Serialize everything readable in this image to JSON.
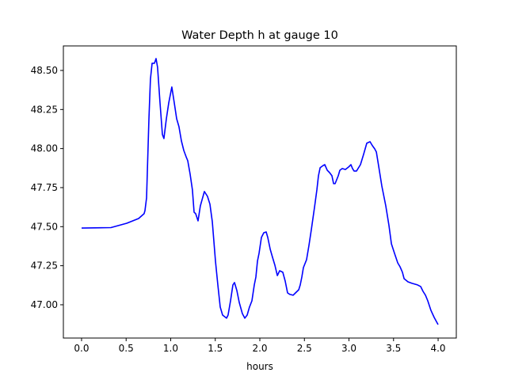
{
  "chart_data": {
    "type": "line",
    "title": "Water Depth h at gauge 10",
    "xlabel": "hours",
    "ylabel": "",
    "xlim": [
      -0.204,
      4.204
    ],
    "ylim": [
      46.787,
      48.657
    ],
    "xticks": [
      0.0,
      0.5,
      1.0,
      1.5,
      2.0,
      2.5,
      3.0,
      3.5,
      4.0
    ],
    "xtick_labels": [
      "0.0",
      "0.5",
      "1.0",
      "1.5",
      "2.0",
      "2.5",
      "3.0",
      "3.5",
      "4.0"
    ],
    "yticks": [
      47.0,
      47.25,
      47.5,
      47.75,
      48.0,
      48.25,
      48.5
    ],
    "ytick_labels": [
      "47.00",
      "47.25",
      "47.50",
      "47.75",
      "48.00",
      "48.25",
      "48.50"
    ],
    "grid": false,
    "series": [
      {
        "name": "h",
        "color": "#0000ff",
        "x": [
          0,
          0.329,
          0.507,
          0.64,
          0.702,
          0.711,
          0.729,
          0.756,
          0.773,
          0.791,
          0.818,
          0.836,
          0.853,
          0.88,
          0.907,
          0.924,
          0.951,
          0.978,
          1.013,
          1.04,
          1.067,
          1.093,
          1.12,
          1.147,
          1.173,
          1.191,
          1.218,
          1.244,
          1.262,
          1.28,
          1.307,
          1.333,
          1.378,
          1.413,
          1.44,
          1.467,
          1.502,
          1.529,
          1.556,
          1.582,
          1.627,
          1.644,
          1.671,
          1.698,
          1.716,
          1.742,
          1.769,
          1.804,
          1.831,
          1.858,
          1.884,
          1.911,
          1.938,
          1.956,
          1.973,
          1.991,
          2.018,
          2.044,
          2.071,
          2.089,
          2.116,
          2.142,
          2.169,
          2.196,
          2.222,
          2.258,
          2.284,
          2.311,
          2.338,
          2.373,
          2.4,
          2.436,
          2.453,
          2.471,
          2.489,
          2.524,
          2.551,
          2.578,
          2.613,
          2.64,
          2.658,
          2.676,
          2.711,
          2.729,
          2.756,
          2.782,
          2.809,
          2.827,
          2.844,
          2.88,
          2.898,
          2.924,
          2.96,
          2.996,
          3.022,
          3.04,
          3.058,
          3.084,
          3.129,
          3.164,
          3.2,
          3.236,
          3.262,
          3.289,
          3.307,
          3.333,
          3.369,
          3.413,
          3.449,
          3.476,
          3.511,
          3.547,
          3.573,
          3.6,
          3.618,
          3.662,
          3.707,
          3.769,
          3.804,
          3.831,
          3.858,
          3.884,
          3.92,
          3.956,
          4.0
        ],
        "y": [
          47.491,
          47.494,
          47.522,
          47.552,
          47.583,
          47.603,
          47.684,
          48.191,
          48.444,
          48.546,
          48.546,
          48.576,
          48.52,
          48.292,
          48.09,
          48.064,
          48.191,
          48.292,
          48.394,
          48.292,
          48.191,
          48.14,
          48.049,
          47.988,
          47.948,
          47.922,
          47.836,
          47.735,
          47.593,
          47.583,
          47.537,
          47.633,
          47.725,
          47.694,
          47.644,
          47.532,
          47.279,
          47.127,
          46.985,
          46.934,
          46.914,
          46.934,
          47.025,
          47.127,
          47.142,
          47.091,
          47.015,
          46.944,
          46.914,
          46.934,
          46.985,
          47.025,
          47.127,
          47.177,
          47.279,
          47.329,
          47.431,
          47.461,
          47.466,
          47.431,
          47.355,
          47.304,
          47.253,
          47.187,
          47.218,
          47.208,
          47.152,
          47.076,
          47.066,
          47.061,
          47.076,
          47.096,
          47.127,
          47.177,
          47.238,
          47.289,
          47.38,
          47.481,
          47.623,
          47.735,
          47.826,
          47.877,
          47.892,
          47.897,
          47.861,
          47.846,
          47.826,
          47.775,
          47.775,
          47.826,
          47.861,
          47.872,
          47.866,
          47.882,
          47.897,
          47.872,
          47.856,
          47.856,
          47.897,
          47.963,
          48.034,
          48.044,
          48.019,
          47.998,
          47.978,
          47.887,
          47.76,
          47.633,
          47.507,
          47.39,
          47.329,
          47.268,
          47.243,
          47.208,
          47.167,
          47.147,
          47.137,
          47.127,
          47.117,
          47.086,
          47.061,
          47.025,
          46.964,
          46.919,
          46.873
        ]
      }
    ]
  }
}
